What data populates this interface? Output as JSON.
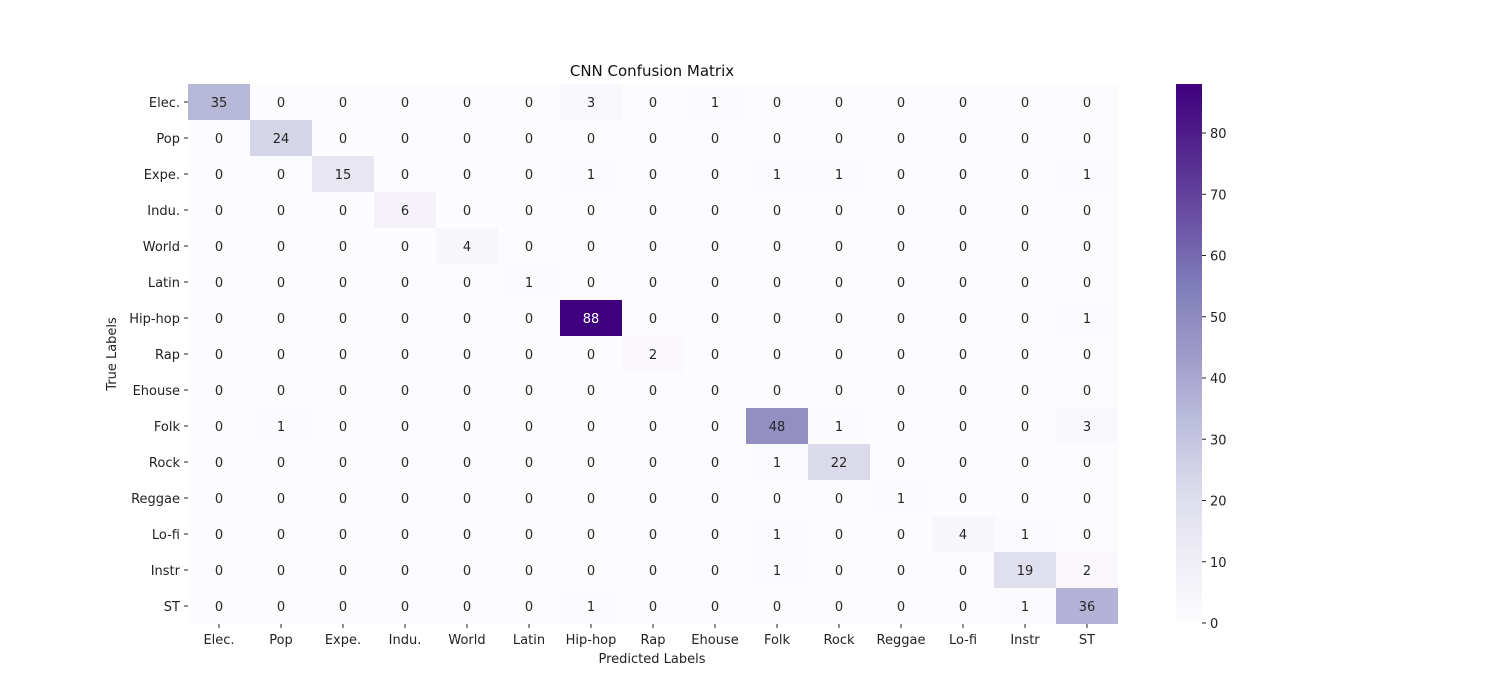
{
  "chart_data": {
    "type": "heatmap",
    "title": "CNN Confusion Matrix",
    "xlabel": "Predicted Labels",
    "ylabel": "True Labels",
    "x_categories": [
      "Elec.",
      "Pop",
      "Expe.",
      "Indu.",
      "World",
      "Latin",
      "Hip-hop",
      "Rap",
      "Ehouse",
      "Folk",
      "Rock",
      "Reggae",
      "Lo-fi",
      "Instr",
      "ST"
    ],
    "y_categories": [
      "Elec.",
      "Pop",
      "Expe.",
      "Indu.",
      "World",
      "Latin",
      "Hip-hop",
      "Rap",
      "Ehouse",
      "Folk",
      "Rock",
      "Reggae",
      "Lo-fi",
      "Instr",
      "ST"
    ],
    "values": [
      [
        35,
        0,
        0,
        0,
        0,
        0,
        3,
        0,
        1,
        0,
        0,
        0,
        0,
        0,
        0
      ],
      [
        0,
        24,
        0,
        0,
        0,
        0,
        0,
        0,
        0,
        0,
        0,
        0,
        0,
        0,
        0
      ],
      [
        0,
        0,
        15,
        0,
        0,
        0,
        1,
        0,
        0,
        1,
        1,
        0,
        0,
        0,
        1
      ],
      [
        0,
        0,
        0,
        6,
        0,
        0,
        0,
        0,
        0,
        0,
        0,
        0,
        0,
        0,
        0
      ],
      [
        0,
        0,
        0,
        0,
        4,
        0,
        0,
        0,
        0,
        0,
        0,
        0,
        0,
        0,
        0
      ],
      [
        0,
        0,
        0,
        0,
        0,
        1,
        0,
        0,
        0,
        0,
        0,
        0,
        0,
        0,
        0
      ],
      [
        0,
        0,
        0,
        0,
        0,
        0,
        88,
        0,
        0,
        0,
        0,
        0,
        0,
        0,
        1
      ],
      [
        0,
        0,
        0,
        0,
        0,
        0,
        0,
        2,
        0,
        0,
        0,
        0,
        0,
        0,
        0
      ],
      [
        0,
        0,
        0,
        0,
        0,
        0,
        0,
        0,
        0,
        0,
        0,
        0,
        0,
        0,
        0
      ],
      [
        0,
        1,
        0,
        0,
        0,
        0,
        0,
        0,
        0,
        48,
        1,
        0,
        0,
        0,
        3
      ],
      [
        0,
        0,
        0,
        0,
        0,
        0,
        0,
        0,
        0,
        1,
        22,
        0,
        0,
        0,
        0
      ],
      [
        0,
        0,
        0,
        0,
        0,
        0,
        0,
        0,
        0,
        0,
        0,
        1,
        0,
        0,
        0
      ],
      [
        0,
        0,
        0,
        0,
        0,
        0,
        0,
        0,
        0,
        1,
        0,
        0,
        4,
        1,
        0
      ],
      [
        0,
        0,
        0,
        0,
        0,
        0,
        0,
        0,
        0,
        1,
        0,
        0,
        0,
        19,
        2
      ],
      [
        0,
        0,
        0,
        0,
        0,
        0,
        1,
        0,
        0,
        0,
        0,
        0,
        0,
        1,
        36
      ]
    ],
    "colorbar": {
      "min": 0,
      "max": 88,
      "ticks": [
        0,
        10,
        20,
        30,
        40,
        50,
        60,
        70,
        80
      ]
    },
    "colormap": "Purples",
    "colors": {
      "low": "#fcfbfd",
      "high": "#3f007d"
    },
    "grid": false
  }
}
